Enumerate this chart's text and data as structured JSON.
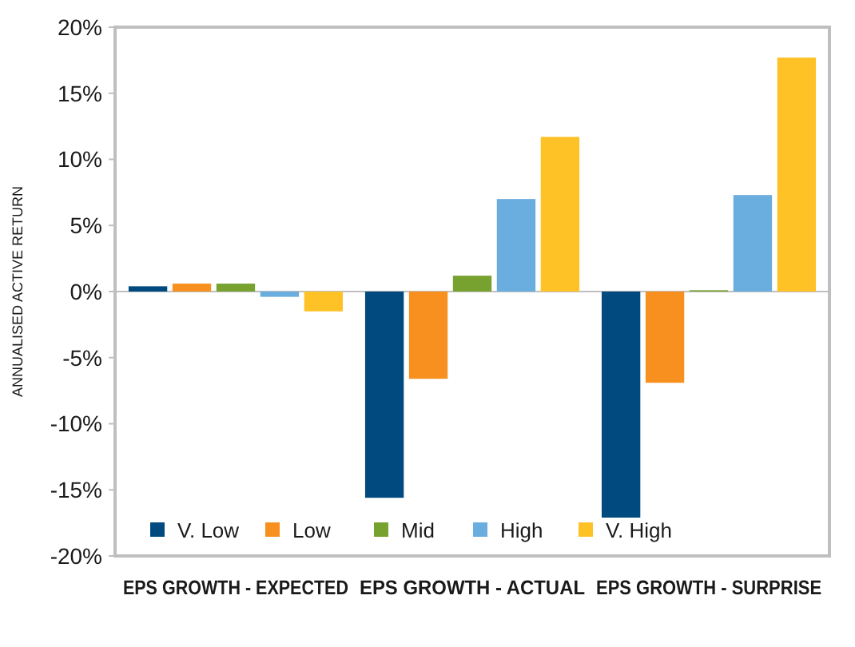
{
  "chart_data": {
    "type": "bar",
    "ylabel": "ANNUALISED ACTIVE RETURN",
    "categories": [
      "EPS GROWTH - EXPECTED",
      "EPS GROWTH - ACTUAL",
      "EPS GROWTH - SURPRISE"
    ],
    "series": [
      {
        "name": "V. Low",
        "color": "#004a80",
        "values": [
          0.4,
          -15.6,
          -17.1
        ]
      },
      {
        "name": "Low",
        "color": "#f7901e",
        "values": [
          0.6,
          -6.6,
          -6.9
        ]
      },
      {
        "name": "Mid",
        "color": "#77a22f",
        "values": [
          0.6,
          1.2,
          0.1
        ]
      },
      {
        "name": "High",
        "color": "#6aaddf",
        "values": [
          -0.4,
          7.0,
          7.3
        ]
      },
      {
        "name": "V. High",
        "color": "#fec227",
        "values": [
          -1.5,
          11.7,
          17.7
        ]
      }
    ],
    "ylim": [
      -20,
      20
    ],
    "yticks": [
      {
        "value": -20,
        "label": "-20%"
      },
      {
        "value": -15,
        "label": "-15%"
      },
      {
        "value": -10,
        "label": "-10%"
      },
      {
        "value": -5,
        "label": "-5%"
      },
      {
        "value": 0,
        "label": "0%"
      },
      {
        "value": 5,
        "label": "5%"
      },
      {
        "value": 10,
        "label": "10%"
      },
      {
        "value": 15,
        "label": "15%"
      },
      {
        "value": 20,
        "label": "20%"
      }
    ],
    "legend": "bottom left"
  }
}
